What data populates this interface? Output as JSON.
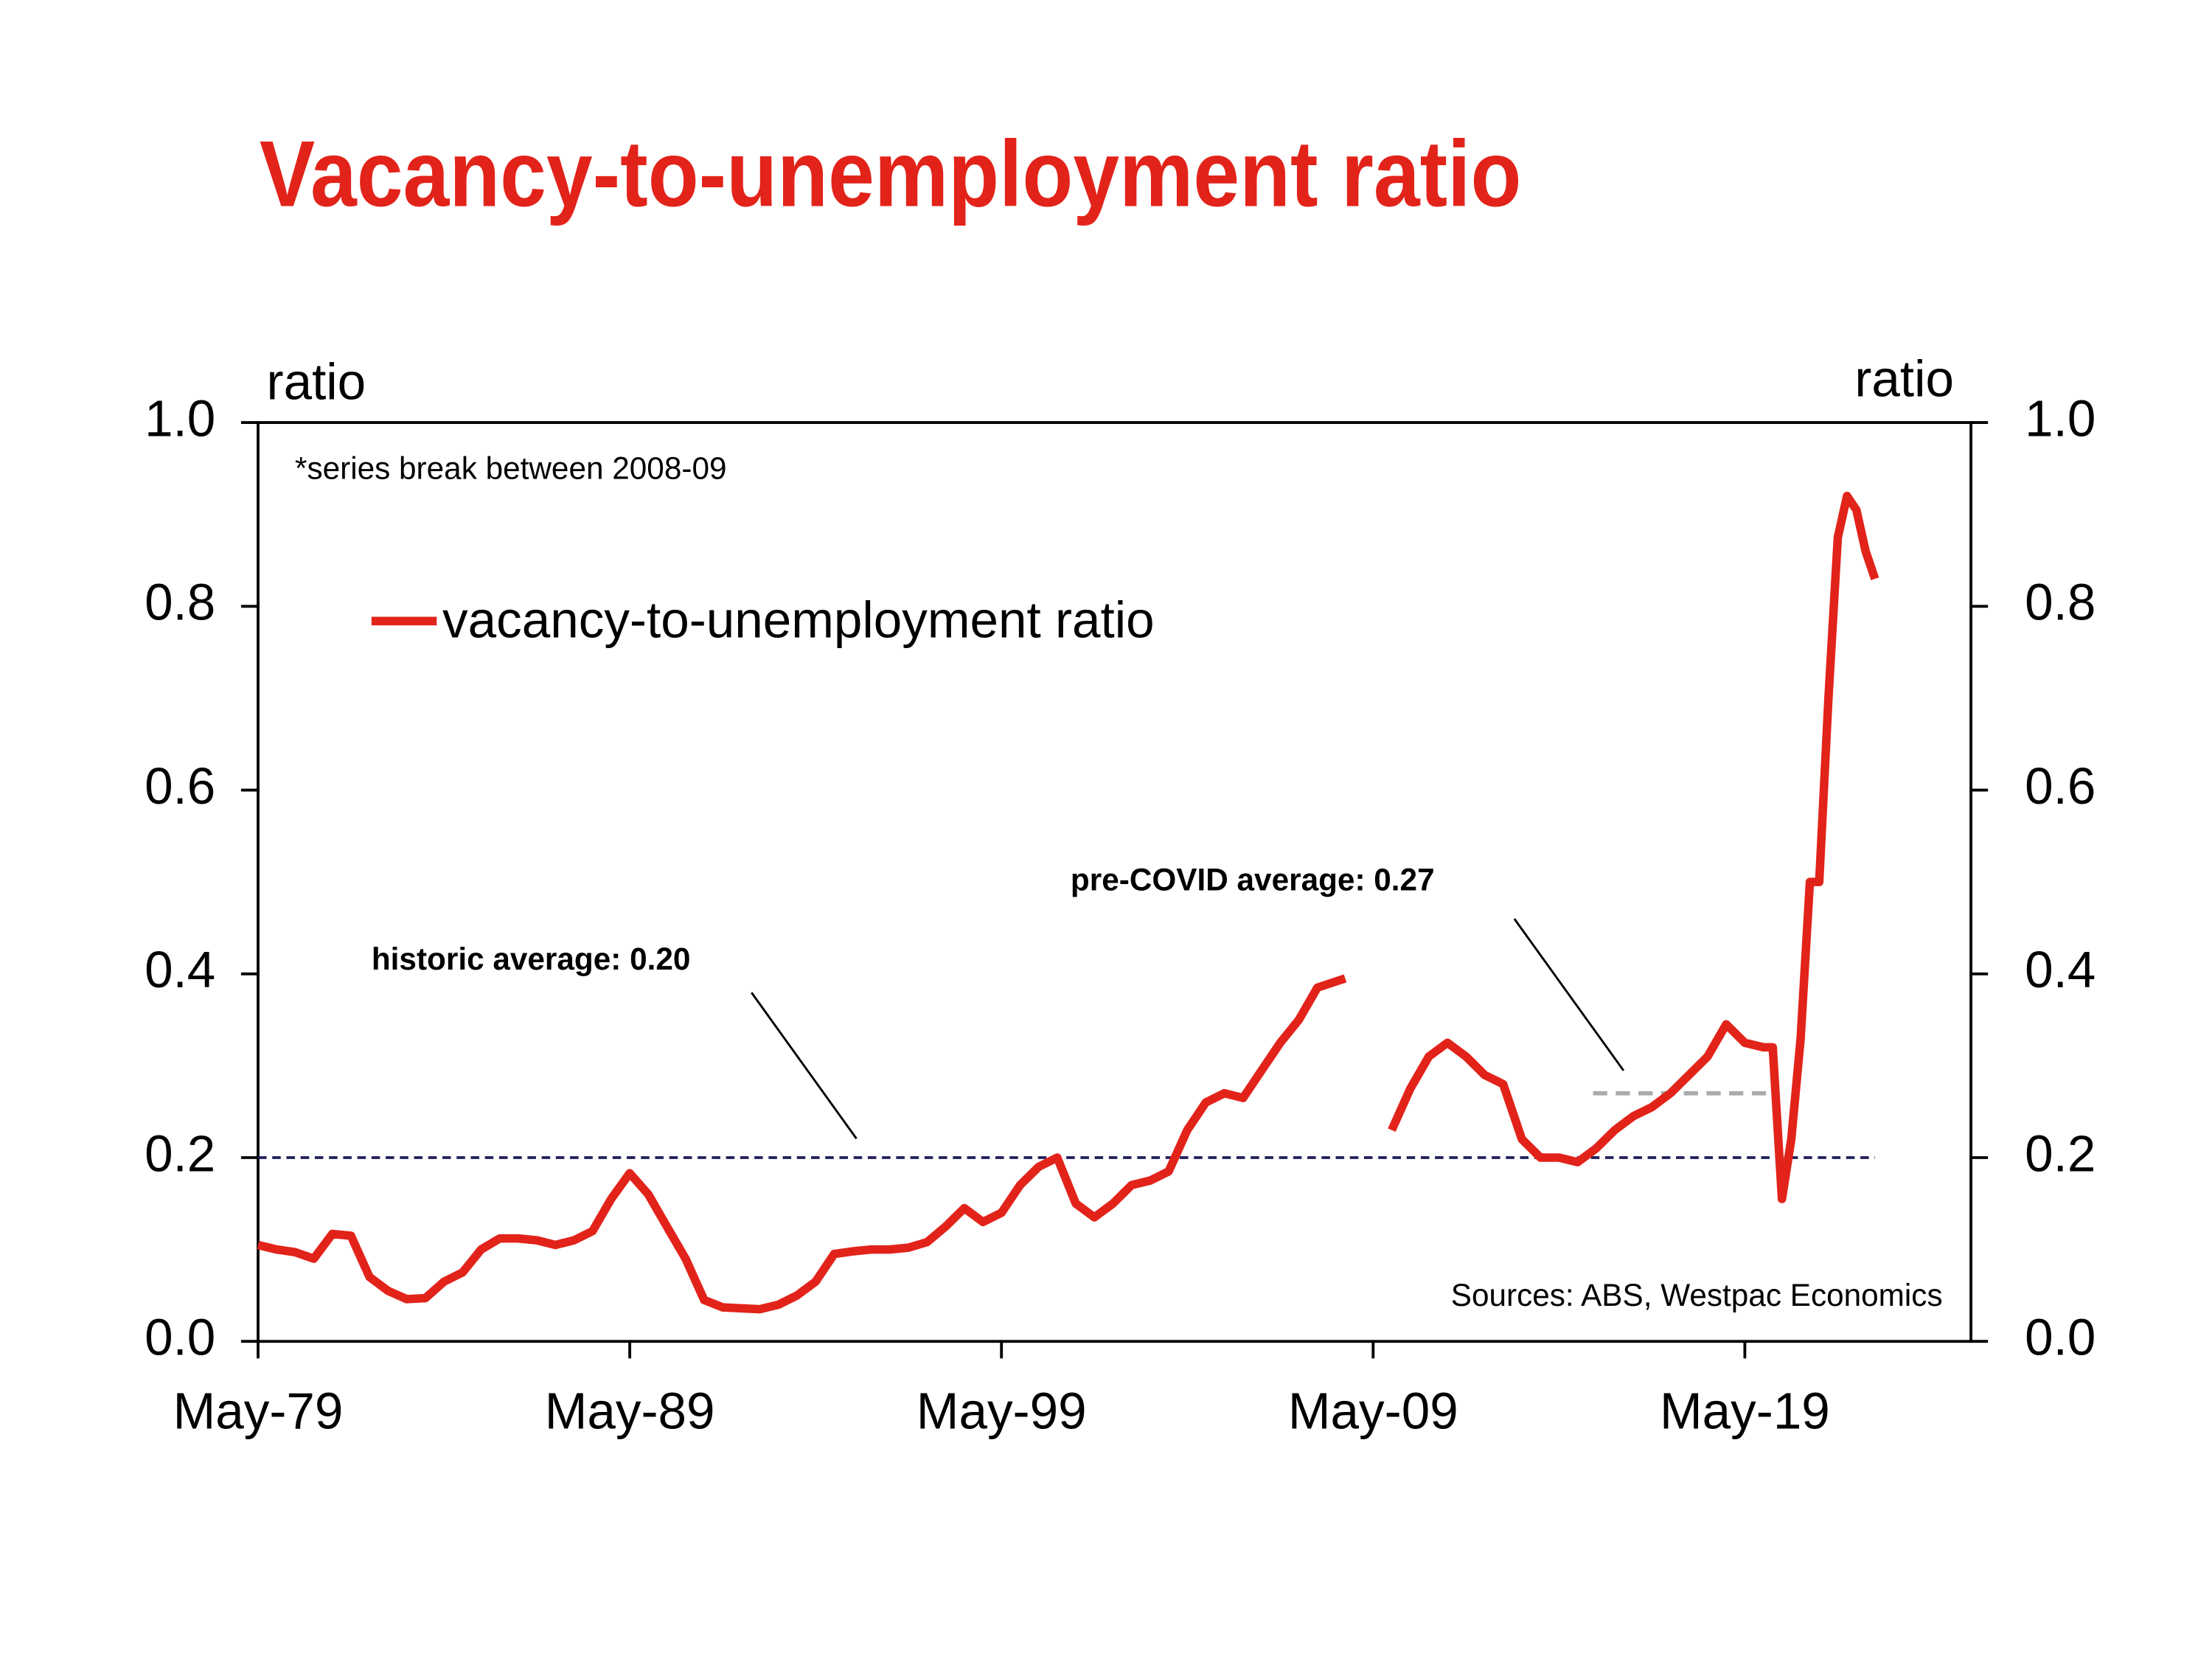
{
  "chart_data": {
    "type": "line",
    "title": "Vacancy-to-unemployment ratio",
    "y_axis_label": "ratio",
    "y2_axis_label": "ratio",
    "annotations": [
      "*series break between 2008-09",
      "Sources: ABS, Westpac Economics"
    ],
    "x": [
      "1979-05",
      "1979-11",
      "1980-05",
      "1980-11",
      "1981-05",
      "1981-11",
      "1982-05",
      "1982-11",
      "1983-05",
      "1983-11",
      "1984-05",
      "1984-11",
      "1985-05",
      "1985-11",
      "1986-05",
      "1986-11",
      "1987-05",
      "1987-11",
      "1988-05",
      "1988-11",
      "1989-05",
      "1989-11",
      "1990-05",
      "1990-11",
      "1991-05",
      "1991-11",
      "1992-05",
      "1992-11",
      "1993-05",
      "1993-11",
      "1994-05",
      "1994-11",
      "1995-05",
      "1995-11",
      "1996-05",
      "1996-11",
      "1997-05",
      "1997-11",
      "1998-05",
      "1998-11",
      "1999-05",
      "1999-11",
      "2000-05",
      "2000-11",
      "2001-05",
      "2001-11",
      "2002-05",
      "2002-11",
      "2003-05",
      "2003-11",
      "2004-05",
      "2004-11",
      "2005-05",
      "2005-11",
      "2006-05",
      "2006-11",
      "2007-05",
      "2007-11",
      "2008-08",
      "2008-11",
      "2009-11",
      "2010-05",
      "2010-11",
      "2011-05",
      "2011-11",
      "2012-05",
      "2012-11",
      "2013-05",
      "2013-11",
      "2014-05",
      "2014-11",
      "2015-05",
      "2015-11",
      "2016-05",
      "2016-11",
      "2017-05",
      "2017-11",
      "2018-05",
      "2018-11",
      "2019-05",
      "2019-11",
      "2020-02",
      "2020-05",
      "2020-08",
      "2020-11",
      "2021-02",
      "2021-05",
      "2021-08",
      "2021-11",
      "2022-02",
      "2022-05",
      "2022-08",
      "2022-11"
    ],
    "series": [
      {
        "name": "vacancy-to-unemployment ratio",
        "color": "#e2231a",
        "values": [
          0.105,
          0.1,
          0.097,
          0.09,
          0.117,
          0.115,
          0.07,
          0.055,
          0.046,
          0.047,
          0.065,
          0.075,
          0.1,
          0.112,
          0.112,
          0.11,
          0.105,
          0.11,
          0.12,
          0.155,
          0.183,
          0.16,
          0.125,
          0.09,
          0.045,
          0.037,
          0.036,
          0.035,
          0.04,
          0.05,
          0.065,
          0.095,
          0.098,
          0.1,
          0.1,
          0.102,
          0.108,
          0.125,
          0.145,
          0.13,
          0.14,
          0.17,
          0.19,
          0.2,
          0.15,
          0.135,
          0.15,
          0.17,
          0.175,
          0.185,
          0.23,
          0.26,
          0.27,
          0.265,
          0.295,
          0.325,
          0.35,
          0.385,
          0.395,
          null,
          0.23,
          0.275,
          0.31,
          0.325,
          0.31,
          0.29,
          0.28,
          0.22,
          0.2,
          0.2,
          0.195,
          0.21,
          0.23,
          0.245,
          0.255,
          0.27,
          0.29,
          0.31,
          0.345,
          0.325,
          0.32,
          0.32,
          0.155,
          0.22,
          0.33,
          0.5,
          0.5,
          0.7,
          0.875,
          0.92,
          0.905,
          0.86,
          0.83
        ]
      }
    ],
    "reference_lines": [
      {
        "label": "historic average: 0.20",
        "value": 0.2,
        "start": "1979-05",
        "end": "2022-11",
        "color": "#1f1f5c"
      },
      {
        "label": "pre-COVID average: 0.27",
        "value": 0.27,
        "start": "2015-04",
        "end": "2020-02",
        "color": "#aaaaaa"
      }
    ],
    "xlim": [
      "1979-05",
      "2025-06"
    ],
    "xticks": [
      {
        "value": "1979-05",
        "label": "May-79"
      },
      {
        "value": "1989-05",
        "label": "May-89"
      },
      {
        "value": "1999-05",
        "label": "May-99"
      },
      {
        "value": "2009-05",
        "label": "May-09"
      },
      {
        "value": "2019-05",
        "label": "May-19"
      }
    ],
    "ylim": [
      0,
      1
    ],
    "yticks": [
      {
        "value": 0,
        "label": "0.0"
      },
      0.2,
      0.4,
      0.6,
      0.8,
      {
        "value": 1,
        "label": "1.0"
      }
    ],
    "y2lim": [
      0,
      1
    ],
    "y2ticks": [
      {
        "value": 0,
        "label": "0.0"
      },
      0.2,
      0.4,
      0.6,
      0.8,
      {
        "value": 1,
        "label": "1.0"
      }
    ],
    "legend": "upper left"
  }
}
